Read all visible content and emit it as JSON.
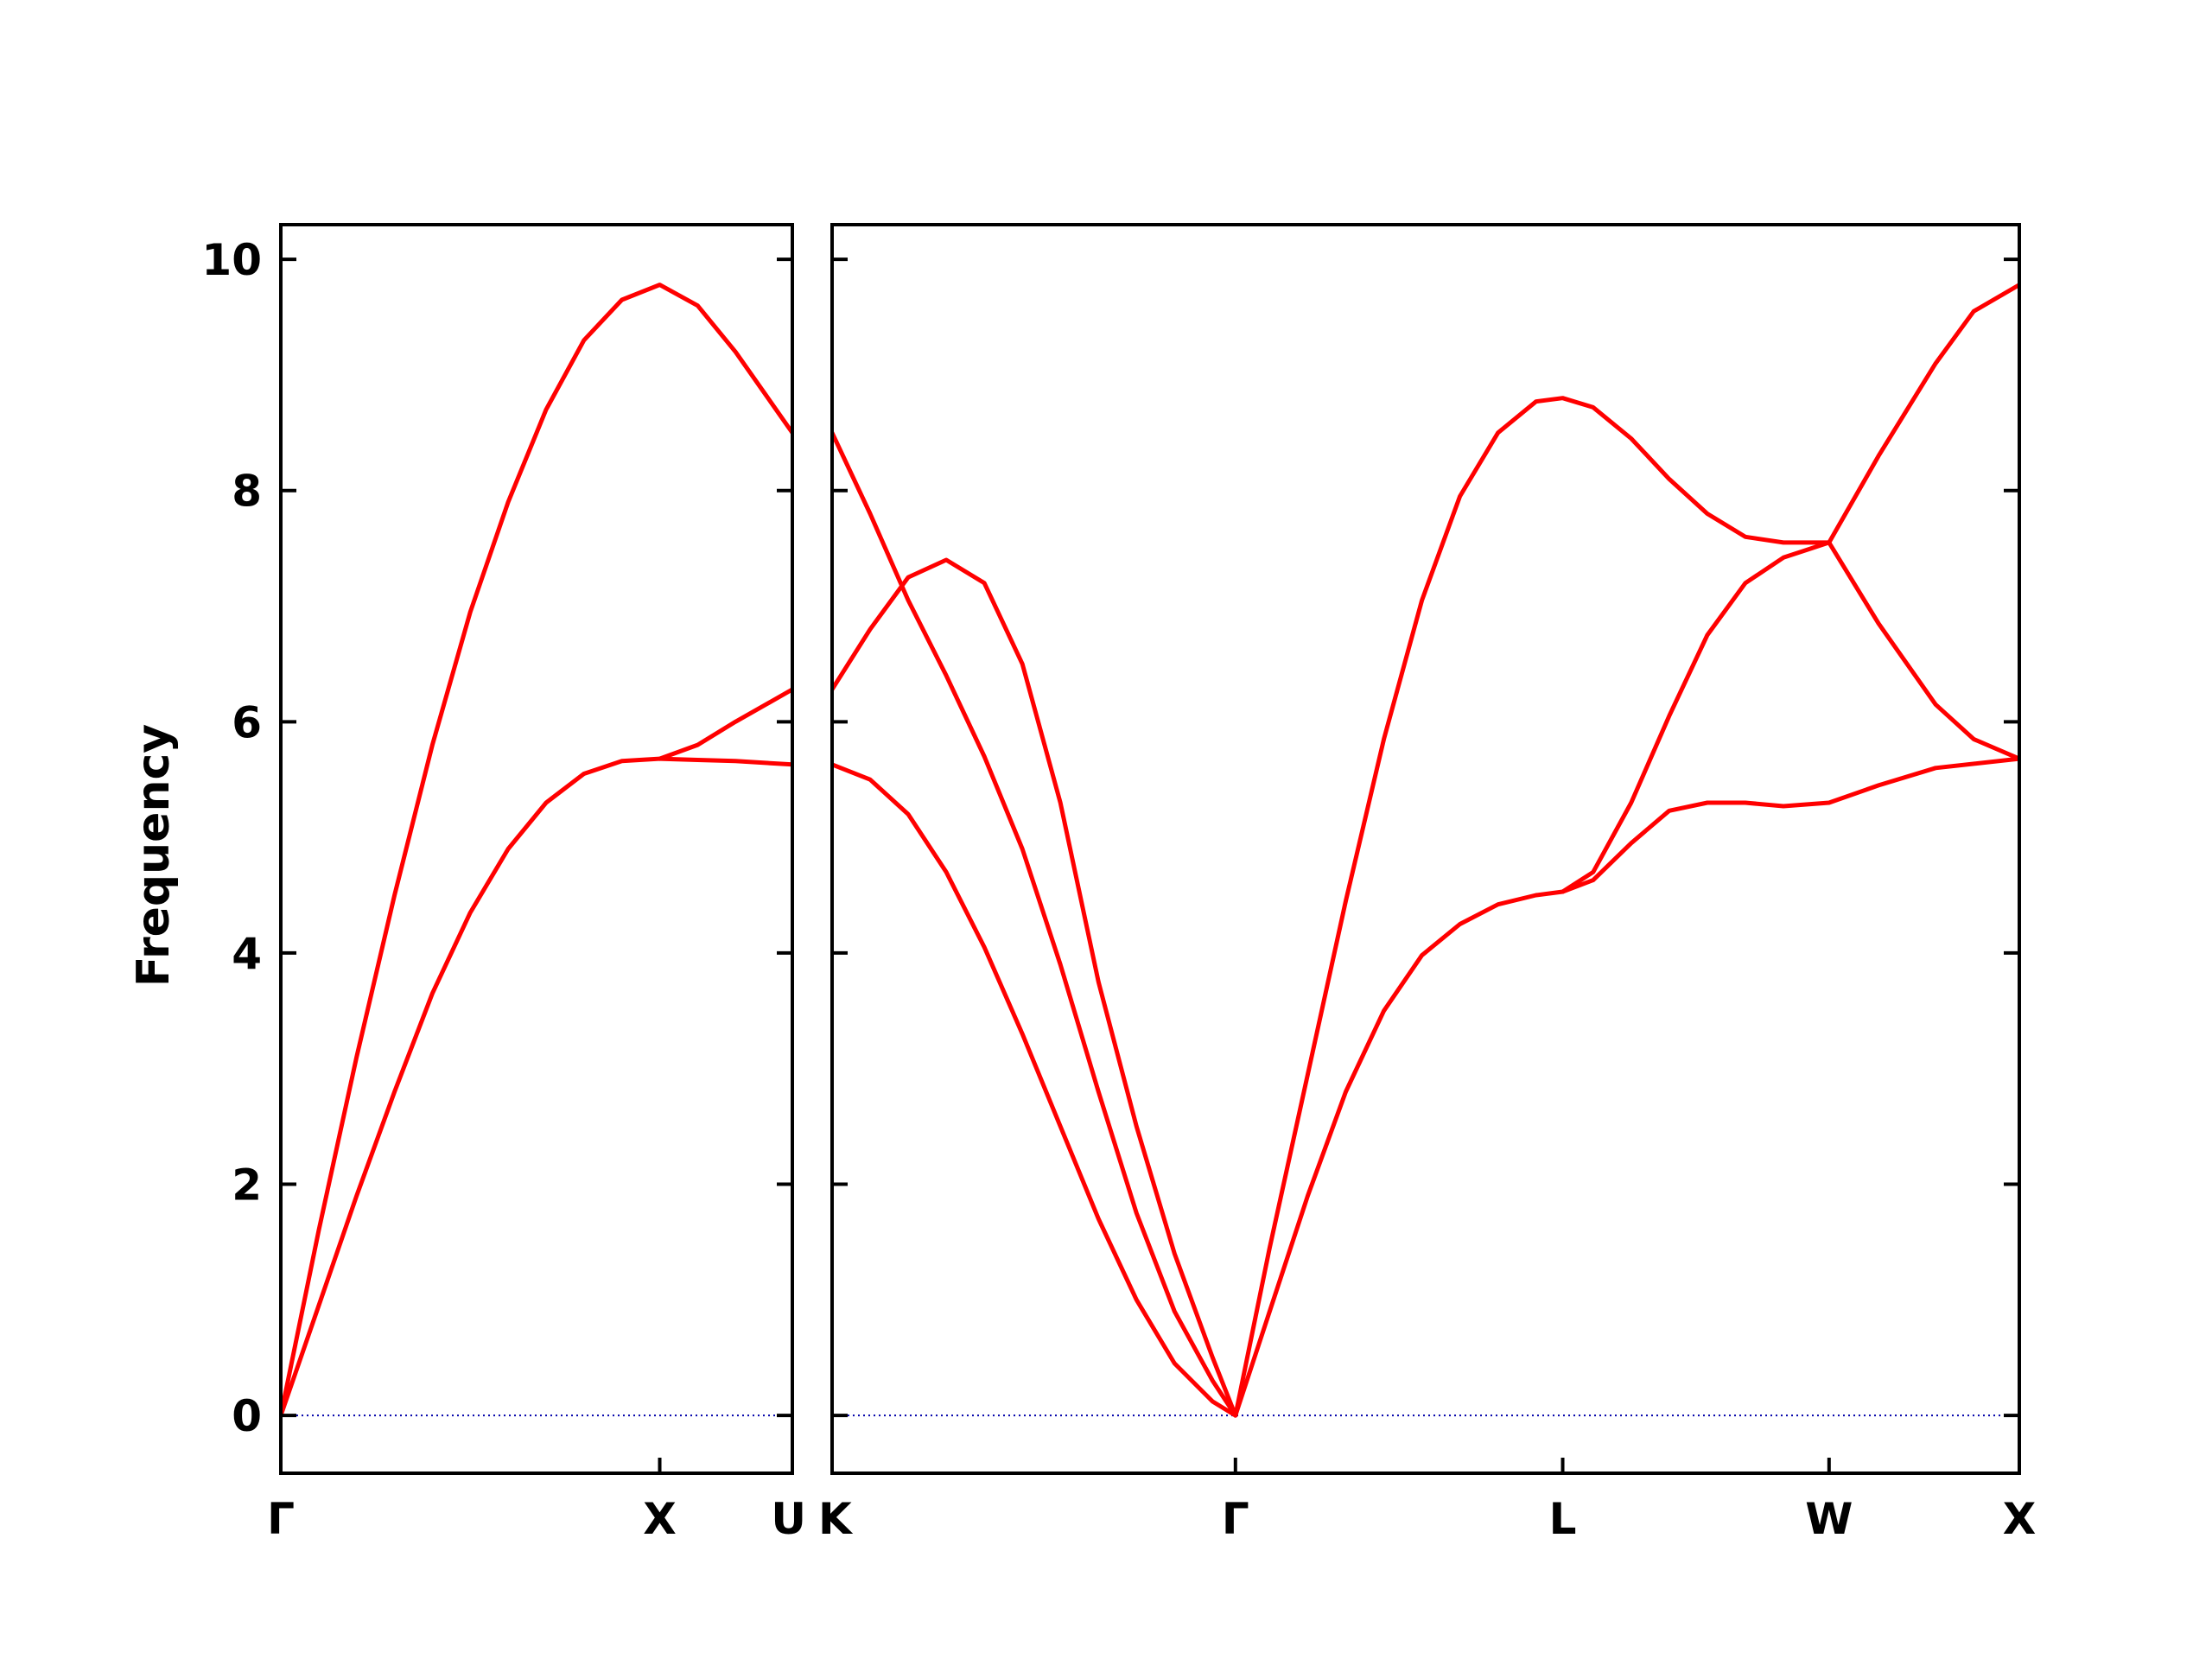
{
  "chart_data": {
    "type": "line",
    "ylabel": "Frequency",
    "ylim": [
      -0.5,
      10.3
    ],
    "yticks": [
      0,
      2,
      4,
      6,
      8,
      10
    ],
    "y_tick_labels": [
      "0",
      "2",
      "4",
      "6",
      "8",
      "10"
    ],
    "grid": false,
    "series_color": "#ff0000",
    "zero_line_color": "#0000aa",
    "panels": [
      {
        "xlim": [
          0,
          1.35
        ],
        "x_ticks": [
          0,
          1.0,
          1.35
        ],
        "x_tick_labels": [
          "Γ",
          "X",
          "U"
        ],
        "series": [
          {
            "values": [
              [
                0,
                0
              ],
              [
                0.1,
                1.6
              ],
              [
                0.2,
                3.1
              ],
              [
                0.3,
                4.5
              ],
              [
                0.4,
                5.8
              ],
              [
                0.5,
                6.95
              ],
              [
                0.6,
                7.9
              ],
              [
                0.7,
                8.7
              ],
              [
                0.8,
                9.3
              ],
              [
                0.9,
                9.65
              ],
              [
                1.0,
                9.78
              ],
              [
                1.1,
                9.6
              ],
              [
                1.2,
                9.2
              ],
              [
                1.35,
                8.5
              ]
            ]
          },
          {
            "values": [
              [
                0,
                0
              ],
              [
                0.1,
                0.95
              ],
              [
                0.2,
                1.9
              ],
              [
                0.3,
                2.8
              ],
              [
                0.4,
                3.65
              ],
              [
                0.5,
                4.35
              ],
              [
                0.6,
                4.9
              ],
              [
                0.7,
                5.3
              ],
              [
                0.8,
                5.55
              ],
              [
                0.9,
                5.66
              ],
              [
                1.0,
                5.68
              ],
              [
                1.1,
                5.8
              ],
              [
                1.2,
                6.0
              ],
              [
                1.35,
                6.28
              ]
            ]
          },
          {
            "values": [
              [
                1.0,
                5.68
              ],
              [
                1.1,
                5.67
              ],
              [
                1.2,
                5.66
              ],
              [
                1.35,
                5.63
              ]
            ]
          }
        ]
      },
      {
        "xlim": [
          0,
          3.12
        ],
        "x_ticks": [
          0,
          1.06,
          1.92,
          2.62,
          3.12
        ],
        "x_tick_labels": [
          "K",
          "Γ",
          "L",
          "W",
          "X"
        ],
        "series": [
          {
            "values": [
              [
                0,
                8.5
              ],
              [
                0.1,
                7.8
              ],
              [
                0.2,
                7.05
              ],
              [
                0.3,
                6.4
              ],
              [
                0.4,
                5.7
              ],
              [
                0.5,
                4.9
              ],
              [
                0.6,
                3.9
              ],
              [
                0.7,
                2.8
              ],
              [
                0.8,
                1.75
              ],
              [
                0.9,
                0.9
              ],
              [
                1.0,
                0.3
              ],
              [
                1.06,
                0
              ]
            ]
          },
          {
            "values": [
              [
                0,
                6.28
              ],
              [
                0.1,
                6.8
              ],
              [
                0.2,
                7.25
              ],
              [
                0.3,
                7.4
              ],
              [
                0.4,
                7.2
              ],
              [
                0.5,
                6.5
              ],
              [
                0.6,
                5.3
              ],
              [
                0.7,
                3.75
              ],
              [
                0.8,
                2.5
              ],
              [
                0.9,
                1.4
              ],
              [
                1.0,
                0.5
              ],
              [
                1.06,
                0
              ]
            ]
          },
          {
            "values": [
              [
                0,
                5.63
              ],
              [
                0.1,
                5.5
              ],
              [
                0.2,
                5.2
              ],
              [
                0.3,
                4.7
              ],
              [
                0.4,
                4.05
              ],
              [
                0.5,
                3.3
              ],
              [
                0.6,
                2.5
              ],
              [
                0.7,
                1.7
              ],
              [
                0.8,
                1.0
              ],
              [
                0.9,
                0.45
              ],
              [
                1.0,
                0.12
              ],
              [
                1.06,
                0
              ]
            ]
          },
          {
            "values": [
              [
                1.06,
                0
              ],
              [
                1.15,
                1.45
              ],
              [
                1.25,
                2.95
              ],
              [
                1.35,
                4.45
              ],
              [
                1.45,
                5.85
              ],
              [
                1.55,
                7.05
              ],
              [
                1.65,
                7.95
              ],
              [
                1.75,
                8.5
              ],
              [
                1.85,
                8.77
              ],
              [
                1.92,
                8.8
              ],
              [
                2.0,
                8.72
              ],
              [
                2.1,
                8.45
              ],
              [
                2.2,
                8.1
              ],
              [
                2.3,
                7.8
              ],
              [
                2.4,
                7.6
              ],
              [
                2.5,
                7.55
              ],
              [
                2.62,
                7.55
              ]
            ]
          },
          {
            "values": [
              [
                1.06,
                0
              ],
              [
                1.15,
                0.9
              ],
              [
                1.25,
                1.9
              ],
              [
                1.35,
                2.8
              ],
              [
                1.45,
                3.5
              ],
              [
                1.55,
                3.98
              ],
              [
                1.65,
                4.25
              ],
              [
                1.75,
                4.42
              ],
              [
                1.85,
                4.5
              ],
              [
                1.92,
                4.53
              ],
              [
                2.0,
                4.7
              ],
              [
                2.1,
                5.3
              ],
              [
                2.2,
                6.05
              ],
              [
                2.3,
                6.75
              ],
              [
                2.4,
                7.2
              ],
              [
                2.5,
                7.42
              ],
              [
                2.62,
                7.55
              ]
            ]
          },
          {
            "values": [
              [
                1.92,
                4.53
              ],
              [
                2.0,
                4.63
              ],
              [
                2.1,
                4.95
              ],
              [
                2.2,
                5.23
              ],
              [
                2.3,
                5.3
              ],
              [
                2.4,
                5.3
              ],
              [
                2.5,
                5.27
              ],
              [
                2.62,
                5.3
              ],
              [
                2.75,
                5.45
              ],
              [
                2.9,
                5.6
              ],
              [
                3.12,
                5.68
              ]
            ]
          },
          {
            "values": [
              [
                2.62,
                7.55
              ],
              [
                2.75,
                8.3
              ],
              [
                2.9,
                9.1
              ],
              [
                3.0,
                9.55
              ],
              [
                3.12,
                9.78
              ]
            ]
          },
          {
            "values": [
              [
                2.62,
                7.55
              ],
              [
                2.75,
                6.85
              ],
              [
                2.9,
                6.15
              ],
              [
                3.0,
                5.85
              ],
              [
                3.12,
                5.68
              ]
            ]
          }
        ]
      }
    ]
  }
}
